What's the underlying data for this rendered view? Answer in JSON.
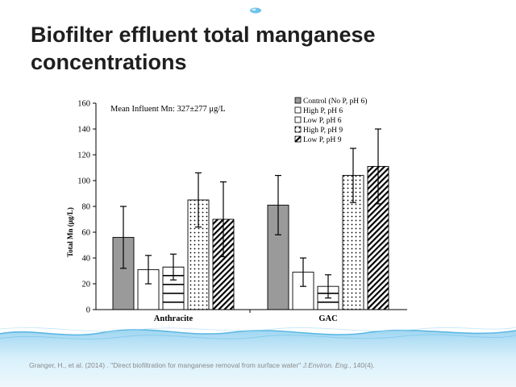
{
  "slide": {
    "title": "Biofilter effluent total manganese concentrations",
    "citation": {
      "authors": "Granger, H., et al. (2014) . \"Direct biofiltration for manganese removal from surface water\"",
      "journal": "J.Environ. Eng.",
      "volume": ", 140(4)."
    }
  },
  "colors": {
    "control_fill": "#9a9a9a",
    "bar_outline": "#000000",
    "title": "#1f1f1f",
    "water_blue": "#bfe4f6",
    "citation": "#8a8a8a"
  },
  "chart_data": {
    "type": "bar",
    "annotation": "Mean Influent Mn: 327±277 μg/L",
    "ylabel": "Total Mn   (μg/L)",
    "xlabel": "",
    "ylim": [
      0,
      160
    ],
    "yticks": [
      0,
      20,
      40,
      60,
      80,
      100,
      120,
      140,
      160
    ],
    "grid": false,
    "legend_position": "top-right",
    "categories": [
      "Anthracite",
      "GAC"
    ],
    "series": [
      {
        "name": "Control (No P, pH 6)",
        "pattern": "gray",
        "values": [
          56,
          81
        ],
        "errors": [
          24,
          23
        ]
      },
      {
        "name": "High P, pH 6",
        "pattern": "white",
        "values": [
          31,
          29
        ],
        "errors": [
          11,
          11
        ]
      },
      {
        "name": "Low P, pH 6",
        "pattern": "hlines",
        "values": [
          33,
          18
        ],
        "errors": [
          10,
          9
        ]
      },
      {
        "name": "High P, pH 9",
        "pattern": "dots",
        "values": [
          85,
          104
        ],
        "errors": [
          21,
          21
        ]
      },
      {
        "name": "Low P, pH 9",
        "pattern": "diag",
        "values": [
          70,
          111
        ],
        "errors": [
          29,
          29
        ]
      }
    ]
  }
}
